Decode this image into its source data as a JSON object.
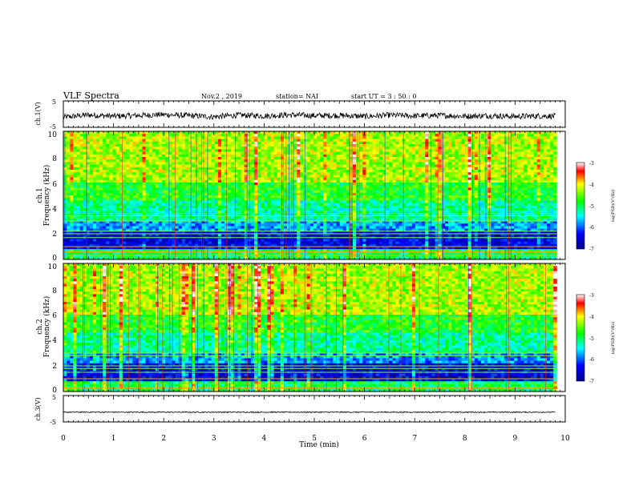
{
  "header": {
    "title": "VLF Spectra",
    "date": "Nov.2 , 2019",
    "station": "station= NAI",
    "start": "start UT = 3 : 50 : 0"
  },
  "chart_data": [
    {
      "type": "line",
      "id": "ch1-waveform",
      "ylabel": "ch.1(V)",
      "ylim": [
        -5,
        5
      ],
      "yticks": [
        "5",
        "-5"
      ],
      "xlim": [
        0,
        10
      ],
      "x": [
        0,
        0.5,
        1,
        1.5,
        2,
        2.5,
        3,
        3.5,
        4,
        4.5,
        5,
        5.5,
        6,
        6.5,
        7,
        7.5,
        8,
        8.5,
        9,
        9.5,
        9.8
      ],
      "y": [
        -1.2,
        -0.3,
        -0.8,
        -0.5,
        -0.2,
        -0.6,
        -1.0,
        -0.4,
        -0.7,
        -0.3,
        -0.6,
        -0.5,
        -0.9,
        -0.4,
        -0.7,
        -0.5,
        -0.8,
        -0.6,
        -0.9,
        -0.7,
        -0.8
      ]
    },
    {
      "type": "heatmap",
      "id": "ch1-spectrogram",
      "ylabel": "ch.1\nFrequency (kHz)",
      "ylim": [
        0,
        10
      ],
      "yticks": [
        "0",
        "2",
        "4",
        "6",
        "8",
        "10"
      ],
      "xlim": [
        0,
        9.83
      ],
      "colorbar": {
        "label": "log(PSD)(V²/Hz)",
        "range": [
          -7,
          -3
        ],
        "ticks": [
          "-3",
          "-4",
          "-5",
          "-6",
          "-7"
        ]
      },
      "bands_khz": [
        0.3,
        0.6,
        1.0,
        1.7,
        2.0,
        2.2,
        3.0,
        3.4
      ]
    },
    {
      "type": "heatmap",
      "id": "ch2-spectrogram",
      "ylabel": "ch.2\nFrequency (kHz)",
      "ylim": [
        0,
        10
      ],
      "yticks": [
        "0",
        "2",
        "4",
        "6",
        "8",
        "10"
      ],
      "xlim": [
        0,
        9.83
      ],
      "colorbar": {
        "label": "log(PSD)(V²/Hz)",
        "range": [
          -7,
          -3
        ],
        "ticks": [
          "-3",
          "-4",
          "-5",
          "-6",
          "-7"
        ]
      },
      "bands_khz": [
        0.3,
        0.6,
        1.0,
        1.5,
        1.8,
        2.0,
        2.8,
        3.0
      ]
    },
    {
      "type": "line",
      "id": "ch3-waveform",
      "ylabel": "ch.3(V)",
      "ylim": [
        -5,
        5
      ],
      "yticks": [
        "5",
        "-5"
      ],
      "xlim": [
        0,
        10
      ],
      "x": [
        0,
        9.8
      ],
      "y": [
        -1.3,
        -1.3
      ]
    }
  ],
  "xaxis": {
    "label": "Time (min)",
    "ticks": [
      "0",
      "1",
      "2",
      "3",
      "4",
      "5",
      "6",
      "7",
      "8",
      "9",
      "10"
    ]
  }
}
